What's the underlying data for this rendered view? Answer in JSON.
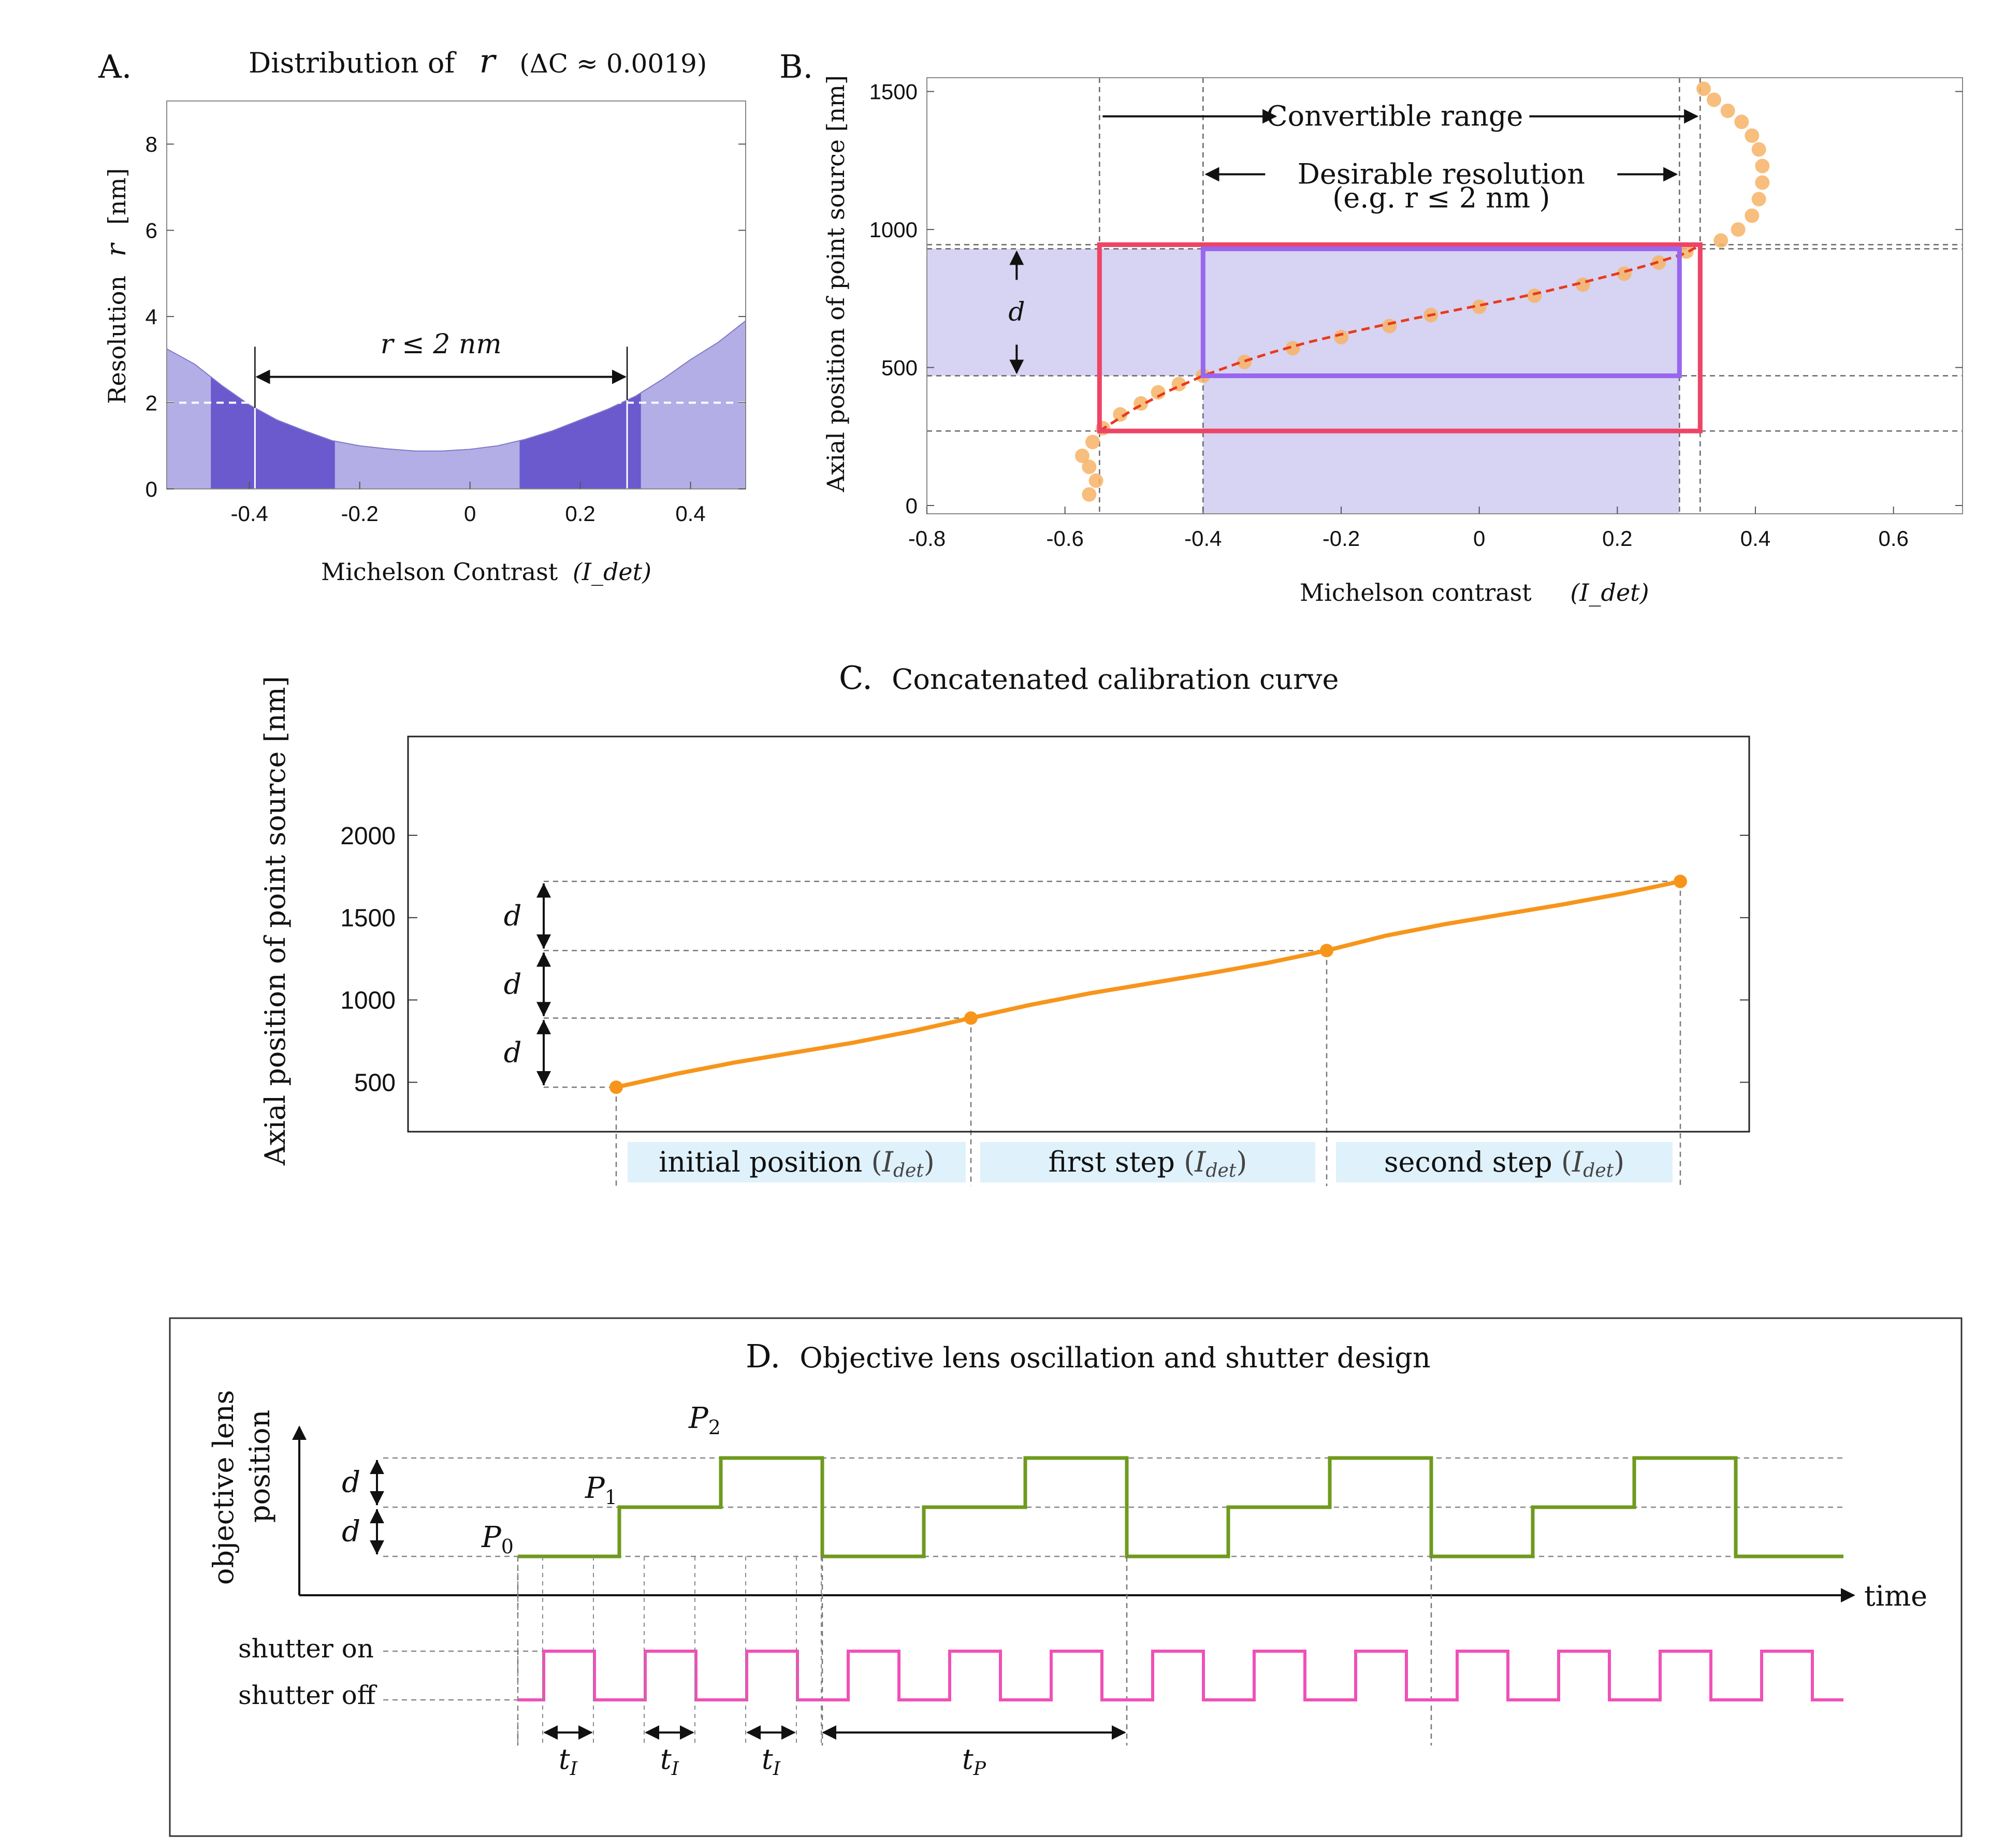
{
  "panel_labels": {
    "a": "A.",
    "b": "B.",
    "c": "C.",
    "d": "D."
  },
  "colors": {
    "band_light": "#b3aee5",
    "band_dark": "#6a5acd",
    "curve_b": "#e83a1c",
    "points_b": "#f7b366",
    "red_rect": "#ee4466",
    "purple_rect": "#9966ee",
    "shade_b": "#d7d3f2",
    "curve_c": "#f7951b",
    "label_box": "#dff1fb",
    "green": "#6f9a1e",
    "pink": "#f050b8"
  },
  "chart_data": [
    {
      "panel": "A",
      "type": "area",
      "title": "Distribution of",
      "title_var": "r",
      "title_note": "(ΔC ≈ 0.0019)",
      "xlabel": "Michelson Contrast",
      "xlabel_var": "(I_det)",
      "ylabel": "Resolution",
      "ylabel_var": "r",
      "ylabel_unit": "[nm]",
      "xlim": [
        -0.55,
        0.5
      ],
      "ylim": [
        0,
        9
      ],
      "xticks": [
        -0.4,
        -0.2,
        0,
        0.2,
        0.4
      ],
      "xtick_labels": [
        "-0.4",
        "-0.2",
        "0",
        "0.2",
        "0.4"
      ],
      "yticks": [
        0,
        2,
        4,
        6,
        8
      ],
      "ytick_labels": [
        "0",
        "2",
        "4",
        "6",
        "8"
      ],
      "curve": {
        "x": [
          -0.55,
          -0.5,
          -0.45,
          -0.4,
          -0.35,
          -0.3,
          -0.25,
          -0.2,
          -0.15,
          -0.1,
          -0.05,
          0.0,
          0.05,
          0.1,
          0.15,
          0.2,
          0.25,
          0.3,
          0.35,
          0.4,
          0.45,
          0.5
        ],
        "y": [
          3.25,
          2.9,
          2.4,
          1.95,
          1.6,
          1.35,
          1.12,
          1.0,
          0.93,
          0.88,
          0.88,
          0.92,
          1.0,
          1.15,
          1.35,
          1.6,
          1.85,
          2.15,
          2.55,
          3.0,
          3.4,
          3.9
        ]
      },
      "dark_bands": [
        [
          -0.47,
          -0.245
        ],
        [
          0.09,
          0.31
        ]
      ],
      "threshold": 2,
      "threshold_range": [
        -0.39,
        0.285
      ],
      "annotation": "r ≤ 2 nm"
    },
    {
      "panel": "B",
      "type": "scatter",
      "xlabel": "Michelson contrast",
      "xlabel_var": "(I_det)",
      "ylabel": "Axial position of point source [nm]",
      "xlim": [
        -0.8,
        0.7
      ],
      "ylim": [
        -30,
        1550
      ],
      "xticks": [
        -0.8,
        -0.6,
        -0.4,
        -0.2,
        0,
        0.2,
        0.4,
        0.6
      ],
      "xtick_labels": [
        "-0.8",
        "-0.6",
        "-0.4",
        "-0.2",
        "0",
        "0.2",
        "0.4",
        "0.6"
      ],
      "yticks": [
        0,
        500,
        1000,
        1500
      ],
      "ytick_labels": [
        "0",
        "500",
        "1000",
        "1500"
      ],
      "points": {
        "x": [
          -0.565,
          -0.555,
          -0.565,
          -0.575,
          -0.56,
          -0.545,
          -0.52,
          -0.49,
          -0.465,
          -0.435,
          -0.4,
          -0.34,
          -0.27,
          -0.2,
          -0.13,
          -0.07,
          0.0,
          0.08,
          0.15,
          0.21,
          0.26,
          0.3,
          0.35,
          0.375,
          0.395,
          0.405,
          0.41,
          0.41,
          0.405,
          0.395,
          0.38,
          0.36,
          0.34,
          0.325
        ],
        "y": [
          40,
          90,
          140,
          180,
          230,
          280,
          330,
          370,
          410,
          440,
          470,
          520,
          570,
          610,
          650,
          690,
          720,
          760,
          800,
          840,
          880,
          920,
          960,
          1000,
          1050,
          1110,
          1170,
          1230,
          1290,
          1340,
          1390,
          1430,
          1470,
          1510
        ]
      },
      "fit_line": {
        "x": [
          -0.55,
          -0.5,
          -0.45,
          -0.4,
          -0.35,
          -0.3,
          -0.25,
          -0.2,
          -0.15,
          -0.1,
          -0.05,
          0.0,
          0.05,
          0.1,
          0.15,
          0.2,
          0.25,
          0.3,
          0.32
        ],
        "y": [
          270,
          350,
          415,
          470,
          515,
          555,
          590,
          620,
          648,
          675,
          700,
          725,
          750,
          778,
          808,
          840,
          875,
          915,
          945
        ]
      },
      "convertible_range": {
        "x": [
          -0.55,
          0.32
        ],
        "y": [
          270,
          945
        ]
      },
      "desirable_range": {
        "x": [
          -0.4,
          0.29
        ],
        "y": [
          470,
          930
        ]
      },
      "dashed_x": [
        -0.55,
        -0.4,
        0.29,
        0.32
      ],
      "dashed_y": [
        270,
        470,
        930,
        945
      ],
      "annotations": {
        "convertible": "Convertible range",
        "desirable": "Desirable resolution",
        "example": "(e.g. r ≤ 2 nm )",
        "d": "d"
      }
    },
    {
      "panel": "C",
      "type": "line",
      "title": "Concatenated calibration curve",
      "ylabel": "Axial position of point source [nm]",
      "ylim": [
        200,
        2600
      ],
      "yticks": [
        500,
        1000,
        1500,
        2000
      ],
      "ytick_labels": [
        "500",
        "1000",
        "1500",
        "2000"
      ],
      "segments": [
        {
          "label": "initial position",
          "y": [
            470,
            550,
            620,
            680,
            740,
            810,
            890
          ]
        },
        {
          "label": "first step",
          "y": [
            890,
            970,
            1040,
            1100,
            1160,
            1225,
            1300
          ]
        },
        {
          "label": "second step",
          "y": [
            1300,
            1390,
            1460,
            1520,
            1580,
            1645,
            1720
          ]
        }
      ],
      "dots": [
        470,
        890,
        1300,
        1720
      ],
      "segment_label_var": "(I_det)",
      "d_label": "d"
    },
    {
      "panel": "D",
      "type": "line",
      "title": "Objective lens oscillation and shutter design",
      "ylabel_line1": "objective lens",
      "ylabel_line2": "position",
      "xlabel": "time",
      "levels": [
        "P0",
        "P1",
        "P2"
      ],
      "lens_sequence": [
        0,
        1,
        2,
        0,
        1,
        2,
        0,
        1,
        2,
        0,
        1,
        2,
        0
      ],
      "shutter_labels": {
        "on": "shutter on",
        "off": "shutter off"
      },
      "shutter_pulses": 13,
      "time_labels": [
        "t_I",
        "t_I",
        "t_I",
        "t_P"
      ],
      "d_label": "d"
    }
  ]
}
